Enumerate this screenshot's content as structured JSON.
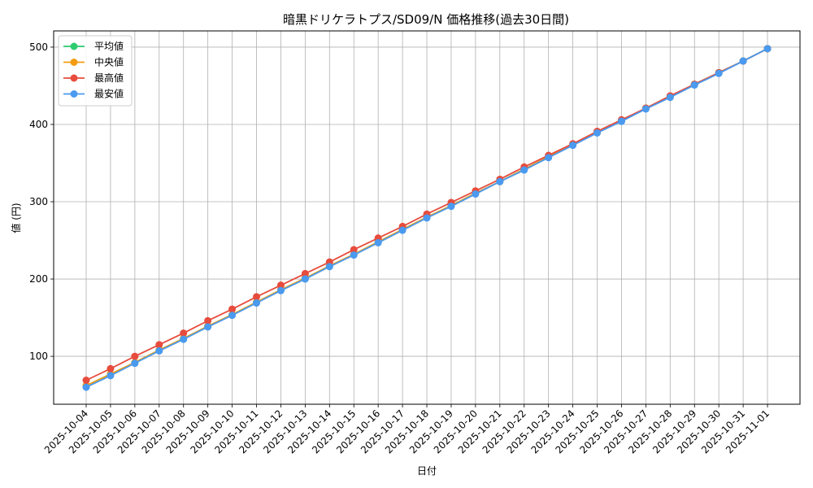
{
  "chart_data": {
    "type": "line",
    "title": "暗黒ドリケラトプス/SD09/N 価格推移(過去30日間)",
    "xlabel": "日付",
    "ylabel": "値 (円)",
    "ylim": [
      38,
      521
    ],
    "yticks": [
      100,
      200,
      300,
      400,
      500
    ],
    "grid": true,
    "legend_position": "top-left",
    "categories": [
      "2025-10-04",
      "2025-10-05",
      "2025-10-06",
      "2025-10-07",
      "2025-10-08",
      "2025-10-09",
      "2025-10-10",
      "2025-10-11",
      "2025-10-12",
      "2025-10-13",
      "2025-10-14",
      "2025-10-15",
      "2025-10-16",
      "2025-10-17",
      "2025-10-18",
      "2025-10-19",
      "2025-10-20",
      "2025-10-21",
      "2025-10-22",
      "2025-10-23",
      "2025-10-24",
      "2025-10-25",
      "2025-10-26",
      "2025-10-27",
      "2025-10-28",
      "2025-10-29",
      "2025-10-30",
      "2025-10-31",
      "2025-11-01"
    ],
    "series": [
      {
        "name": "平均値",
        "color": "#2ecc71",
        "values": [
          62,
          77,
          92,
          108,
          123,
          139,
          154,
          170,
          186,
          201,
          217,
          232,
          248,
          264,
          280,
          295,
          311,
          326,
          342,
          358,
          374,
          390,
          405,
          421,
          436,
          452,
          467,
          482,
          498
        ]
      },
      {
        "name": "中央値",
        "color": "#f39c12",
        "values": [
          62,
          77,
          92,
          108,
          123,
          139,
          154,
          170,
          186,
          201,
          217,
          232,
          248,
          264,
          280,
          295,
          311,
          326,
          342,
          358,
          374,
          390,
          405,
          421,
          436,
          452,
          467,
          482,
          498
        ]
      },
      {
        "name": "最高値",
        "color": "#e74c3c",
        "values": [
          69,
          84,
          100,
          115,
          130,
          146,
          161,
          177,
          192,
          207,
          222,
          238,
          253,
          268,
          284,
          299,
          314,
          329,
          345,
          360,
          375,
          391,
          406,
          421,
          437,
          452,
          467,
          482,
          498
        ]
      },
      {
        "name": "最安値",
        "color": "#4a9aef",
        "values": [
          60,
          75,
          91,
          107,
          122,
          138,
          153,
          169,
          185,
          200,
          216,
          231,
          247,
          263,
          279,
          294,
          310,
          326,
          341,
          357,
          373,
          389,
          404,
          420,
          435,
          451,
          466,
          482,
          498
        ]
      }
    ]
  }
}
